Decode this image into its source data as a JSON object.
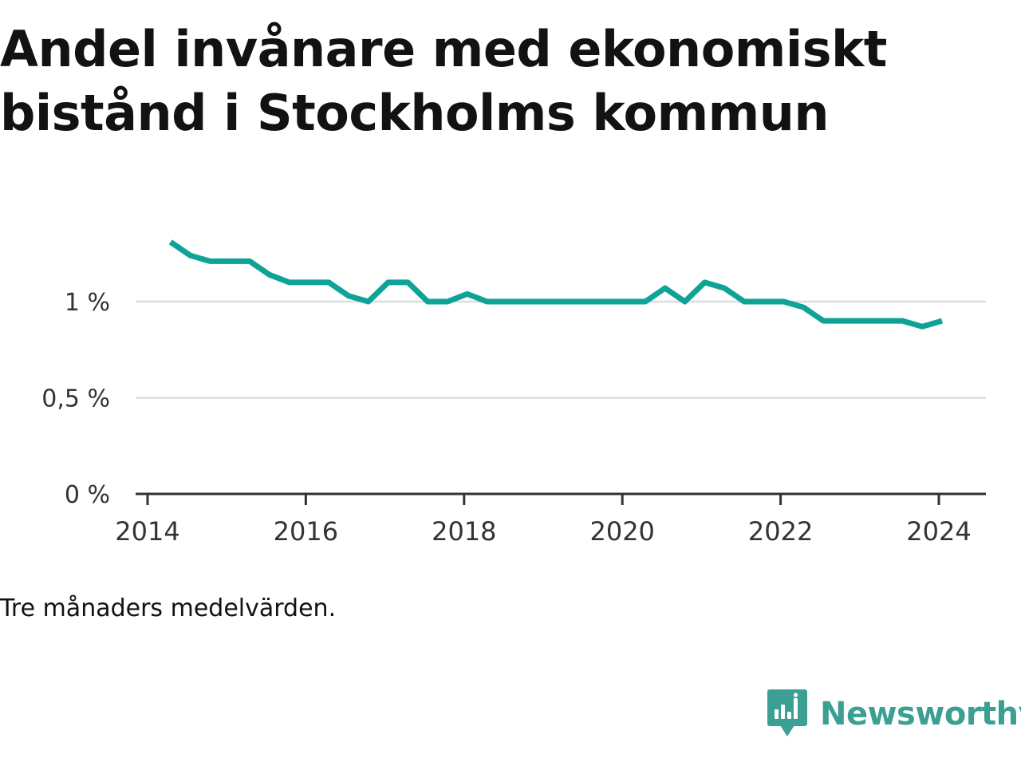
{
  "title": "Andel invånare med ekonomiskt bistånd i Stockholms kommun",
  "note": "Tre månaders medelvärden.",
  "brand": {
    "name": "Newsworthy",
    "icon": "newsworthy-logo-icon"
  },
  "colors": {
    "line": "#0fa297",
    "grid": "#dddddd",
    "axis": "#333333",
    "text": "#121212",
    "brand": "#3c9f93"
  },
  "chart_data": {
    "type": "line",
    "title": "Andel invånare med ekonomiskt bistånd i Stockholms kommun",
    "xlabel": "",
    "ylabel": "",
    "xlim": [
      2014,
      2024.6
    ],
    "ylim": [
      0,
      1.5
    ],
    "x_ticks": [
      2014,
      2016,
      2018,
      2020,
      2022,
      2024
    ],
    "y_ticks": [
      {
        "value": 0,
        "label": "0 %"
      },
      {
        "value": 0.5,
        "label": "0,5 %"
      },
      {
        "value": 1,
        "label": "1 %"
      }
    ],
    "grid": true,
    "legend": "none",
    "series": [
      {
        "x": [
          2014.29,
          2014.54,
          2014.79,
          2015.04,
          2015.29,
          2015.54,
          2015.79,
          2016.04,
          2016.29,
          2016.54,
          2016.79,
          2017.04,
          2017.29,
          2017.54,
          2017.79,
          2018.04,
          2018.29,
          2018.54,
          2018.79,
          2019.04,
          2019.29,
          2019.54,
          2019.79,
          2020.04,
          2020.29,
          2020.54,
          2020.79,
          2021.04,
          2021.29,
          2021.54,
          2021.79,
          2022.04,
          2022.29,
          2022.54,
          2022.79,
          2023.04,
          2023.29,
          2023.54,
          2023.79,
          2024.04
        ],
        "values": [
          1.31,
          1.24,
          1.21,
          1.21,
          1.21,
          1.14,
          1.1,
          1.1,
          1.1,
          1.03,
          1.0,
          1.1,
          1.1,
          1.0,
          1.0,
          1.04,
          1.0,
          1.0,
          1.0,
          1.0,
          1.0,
          1.0,
          1.0,
          1.0,
          1.0,
          1.07,
          1.0,
          1.1,
          1.07,
          1.0,
          1.0,
          1.0,
          0.97,
          0.9,
          0.9,
          0.9,
          0.9,
          0.9,
          0.87,
          0.9
        ]
      }
    ]
  }
}
